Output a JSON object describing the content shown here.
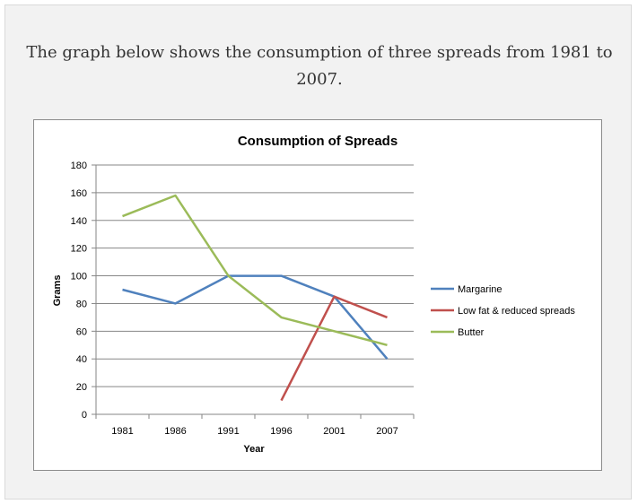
{
  "caption": "The graph below shows the consumption of three spreads from 1981 to 2007.",
  "chart_data": {
    "type": "line",
    "title": "Consumption of Spreads",
    "xlabel": "Year",
    "ylabel": "Grams",
    "categories": [
      "1981",
      "1986",
      "1991",
      "1996",
      "2001",
      "2007"
    ],
    "ylim": [
      0,
      180
    ],
    "yticks": [
      0,
      20,
      40,
      60,
      80,
      100,
      120,
      140,
      160,
      180
    ],
    "grid": true,
    "legend_position": "right",
    "series": [
      {
        "name": "Margarine",
        "color": "#4f81bd",
        "values": [
          90,
          80,
          100,
          100,
          85,
          40
        ]
      },
      {
        "name": "Low fat & reduced spreads",
        "color": "#c0504d",
        "values": [
          null,
          null,
          null,
          10,
          85,
          70
        ]
      },
      {
        "name": "Butter",
        "color": "#9bbb59",
        "values": [
          143,
          158,
          100,
          70,
          60,
          50
        ]
      }
    ]
  }
}
